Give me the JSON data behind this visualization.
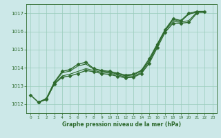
{
  "xlabel": "Graphe pression niveau de la mer (hPa)",
  "bg_color": "#cce8e8",
  "grid_color": "#99ccbb",
  "line_color": "#2d6a2d",
  "ylim": [
    1011.5,
    1017.5
  ],
  "xlim": [
    -0.5,
    23.5
  ],
  "yticks": [
    1012,
    1013,
    1014,
    1015,
    1016,
    1017
  ],
  "xticks": [
    0,
    1,
    2,
    3,
    4,
    5,
    6,
    7,
    8,
    9,
    10,
    11,
    12,
    13,
    14,
    15,
    16,
    17,
    18,
    19,
    20,
    21,
    22,
    23
  ],
  "lines": [
    {
      "x": [
        0,
        1,
        2,
        3,
        4,
        5,
        6,
        7,
        8,
        9,
        10,
        11,
        12,
        13,
        14,
        15,
        16,
        17,
        18,
        19,
        20,
        21,
        22,
        23
      ],
      "y": [
        1012.5,
        1012.1,
        1012.3,
        1013.2,
        1013.8,
        1013.9,
        1014.2,
        1014.3,
        1013.95,
        1013.85,
        1013.8,
        1013.7,
        1013.6,
        1013.65,
        1013.85,
        1014.5,
        1015.3,
        1016.1,
        1016.7,
        1016.6,
        1017.0,
        1017.1,
        1017.1,
        null
      ],
      "marker": "D",
      "lw": 1.0,
      "ms": 2.5
    },
    {
      "x": [
        0,
        1,
        2,
        3,
        4,
        5,
        6,
        7,
        8,
        9,
        10,
        11,
        12,
        13,
        14,
        15,
        16,
        17,
        18,
        19,
        20,
        21,
        22,
        23
      ],
      "y": [
        1012.5,
        1012.1,
        1012.3,
        1013.15,
        1013.72,
        1013.82,
        1014.1,
        1014.2,
        1013.92,
        1013.82,
        1013.75,
        1013.65,
        1013.55,
        1013.6,
        1013.82,
        1014.4,
        1015.25,
        1016.05,
        1016.65,
        1016.55,
        1016.95,
        1017.05,
        1017.05,
        null
      ],
      "marker": null,
      "lw": 0.8,
      "ms": 0
    },
    {
      "x": [
        1,
        2,
        3,
        4,
        5,
        6,
        7,
        8,
        9,
        10,
        11,
        12,
        13,
        14,
        15,
        16,
        17,
        18,
        19,
        20,
        21,
        22,
        23
      ],
      "y": [
        1012.1,
        1012.25,
        1013.1,
        1013.55,
        1013.65,
        1013.8,
        1013.95,
        1013.85,
        1013.75,
        1013.7,
        1013.6,
        1013.5,
        1013.52,
        1013.75,
        1014.35,
        1015.2,
        1016.05,
        1016.55,
        1016.5,
        1016.6,
        1017.05,
        1017.05,
        null
      ],
      "marker": null,
      "lw": 0.8,
      "ms": 0
    },
    {
      "x": [
        1,
        2,
        3,
        4,
        5,
        6,
        7,
        8,
        9,
        10,
        11,
        12,
        13,
        14,
        15,
        16,
        17,
        18,
        19,
        20,
        21,
        22,
        23
      ],
      "y": [
        1012.1,
        1012.25,
        1013.1,
        1013.48,
        1013.55,
        1013.68,
        1013.85,
        1013.78,
        1013.68,
        1013.63,
        1013.53,
        1013.45,
        1013.48,
        1013.68,
        1014.25,
        1015.1,
        1015.95,
        1016.45,
        1016.45,
        1016.5,
        1017.0,
        null,
        null
      ],
      "marker": "D",
      "lw": 1.0,
      "ms": 2.5
    }
  ]
}
